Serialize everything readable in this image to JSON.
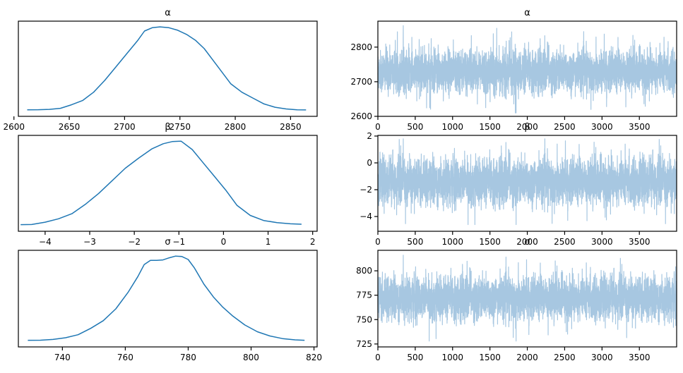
{
  "chart_data": [
    {
      "type": "line",
      "title": "α",
      "xlabel": "",
      "ylabel": "",
      "xlim": [
        2604,
        2874
      ],
      "y_ticks_visible": false,
      "x_ticks": [
        2600,
        2650,
        2700,
        2750,
        2800,
        2850
      ],
      "x": [
        2612,
        2622,
        2632,
        2642,
        2652,
        2662,
        2672,
        2682,
        2692,
        2702,
        2712,
        2718,
        2725,
        2732,
        2740,
        2748,
        2756,
        2764,
        2772,
        2780,
        2788,
        2796,
        2806,
        2816,
        2826,
        2836,
        2846,
        2856,
        2864
      ],
      "y": [
        0.01,
        0.011,
        0.015,
        0.028,
        0.07,
        0.12,
        0.22,
        0.36,
        0.52,
        0.68,
        0.84,
        0.95,
        0.99,
        1.0,
        0.99,
        0.96,
        0.91,
        0.84,
        0.74,
        0.6,
        0.46,
        0.32,
        0.22,
        0.15,
        0.08,
        0.04,
        0.02,
        0.01,
        0.008
      ]
    },
    {
      "type": "line",
      "title": "α",
      "xlabel": "",
      "ylabel": "",
      "xlim": [
        0,
        3999
      ],
      "ylim": [
        2600,
        2875
      ],
      "x_ticks": [
        0,
        500,
        1000,
        1500,
        2000,
        2500,
        3000,
        3500
      ],
      "y_ticks": [
        2600,
        2700,
        2800
      ],
      "trace": {
        "samples": 4000,
        "center": 2730,
        "spread": 30,
        "lower_extreme": 2610,
        "upper_extreme": 2862
      }
    },
    {
      "type": "line",
      "title": "β",
      "xlabel": "",
      "ylabel": "",
      "xlim": [
        -4.6,
        2.1
      ],
      "y_ticks_visible": false,
      "x_ticks": [
        -4,
        -3,
        -2,
        -1,
        0,
        1,
        2
      ],
      "x": [
        -4.55,
        -4.3,
        -4.0,
        -3.7,
        -3.4,
        -3.1,
        -2.8,
        -2.5,
        -2.2,
        -1.9,
        -1.6,
        -1.35,
        -1.15,
        -0.95,
        -0.7,
        -0.45,
        -0.2,
        0.05,
        0.3,
        0.6,
        0.9,
        1.2,
        1.5,
        1.75
      ],
      "y": [
        0.01,
        0.012,
        0.04,
        0.08,
        0.14,
        0.25,
        0.38,
        0.53,
        0.68,
        0.8,
        0.91,
        0.97,
        0.995,
        1.0,
        0.9,
        0.74,
        0.58,
        0.42,
        0.24,
        0.12,
        0.06,
        0.035,
        0.02,
        0.015
      ]
    },
    {
      "type": "line",
      "title": "β",
      "xlabel": "",
      "ylabel": "",
      "xlim": [
        0,
        3999
      ],
      "ylim": [
        -5.1,
        2.05
      ],
      "x_ticks": [
        0,
        500,
        1000,
        1500,
        2000,
        2500,
        3000,
        3500
      ],
      "y_ticks": [
        -4,
        -2,
        0,
        2
      ],
      "trace": {
        "samples": 4000,
        "center": -1.4,
        "spread": 0.85,
        "lower_extreme": -4.6,
        "upper_extreme": 1.8
      }
    },
    {
      "type": "line",
      "title": "σ",
      "xlabel": "",
      "ylabel": "",
      "xlim": [
        726,
        821
      ],
      "y_ticks_visible": false,
      "x_ticks": [
        740,
        760,
        780,
        800,
        820
      ],
      "x": [
        729,
        733,
        737,
        741,
        745,
        749,
        753,
        757,
        761,
        764,
        766,
        768,
        770,
        772,
        774,
        776,
        778,
        780,
        782,
        785,
        788,
        791,
        794,
        798,
        802,
        806,
        810,
        814,
        817
      ],
      "y": [
        0.01,
        0.011,
        0.02,
        0.04,
        0.075,
        0.15,
        0.24,
        0.38,
        0.58,
        0.76,
        0.9,
        0.95,
        0.95,
        0.955,
        0.98,
        1.0,
        0.995,
        0.96,
        0.86,
        0.67,
        0.52,
        0.4,
        0.3,
        0.19,
        0.11,
        0.06,
        0.03,
        0.015,
        0.01
      ]
    },
    {
      "type": "line",
      "title": "σ",
      "xlabel": "",
      "ylabel": "",
      "xlim": [
        0,
        3999
      ],
      "ylim": [
        722,
        821
      ],
      "x_ticks": [
        0,
        500,
        1000,
        1500,
        2000,
        2500,
        3000,
        3500
      ],
      "y_ticks": [
        725,
        750,
        775,
        800
      ],
      "trace": {
        "samples": 4000,
        "center": 772,
        "spread": 11,
        "lower_extreme": 728,
        "upper_extreme": 816
      }
    }
  ],
  "colors": {
    "kde": "#1f77b4",
    "trace": "#a7c7e1"
  }
}
